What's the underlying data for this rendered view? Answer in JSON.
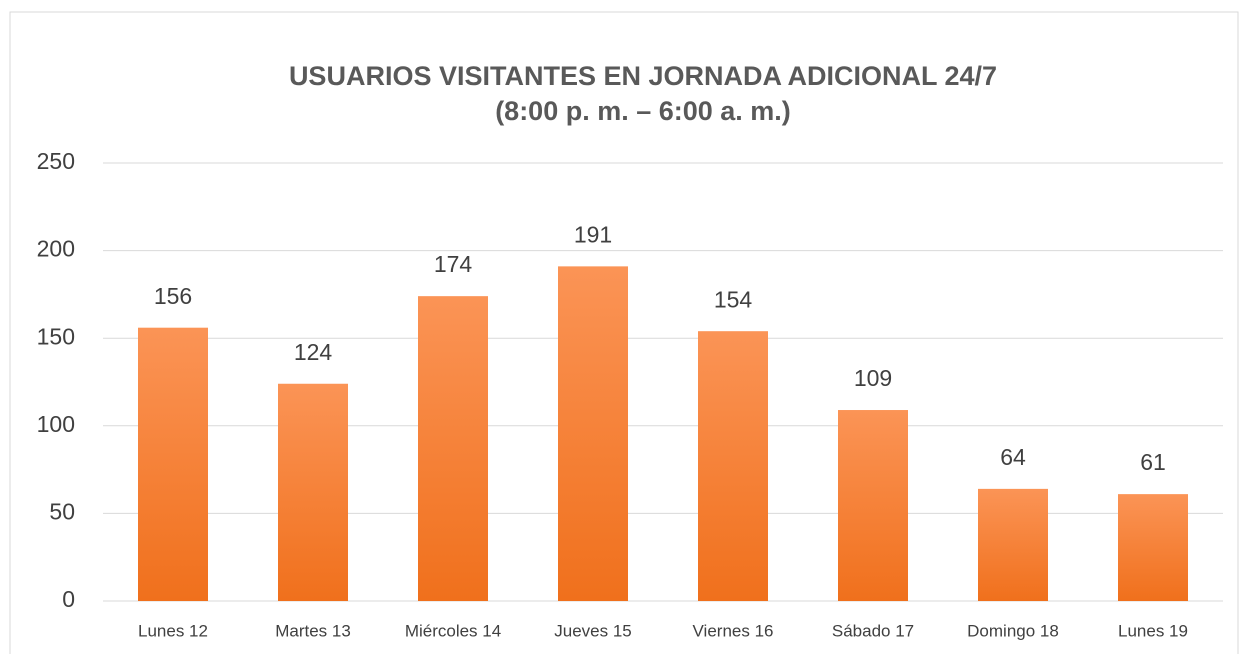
{
  "chart_data": {
    "type": "bar",
    "title": [
      "USUARIOS VISITANTES EN JORNADA ADICIONAL 24/7",
      "(8:00 p. m. – 6:00 a. m.)"
    ],
    "categories": [
      "Lunes 12",
      "Martes 13",
      "Miércoles 14",
      "Jueves 15",
      "Viernes 16",
      "Sábado 17",
      "Domingo 18",
      "Lunes 19"
    ],
    "values": [
      156,
      124,
      174,
      191,
      154,
      109,
      64,
      61
    ],
    "color": "#f7802e",
    "ylim": [
      0,
      250
    ],
    "yticks": [
      0,
      50,
      100,
      150,
      200,
      250
    ],
    "grid": true
  }
}
